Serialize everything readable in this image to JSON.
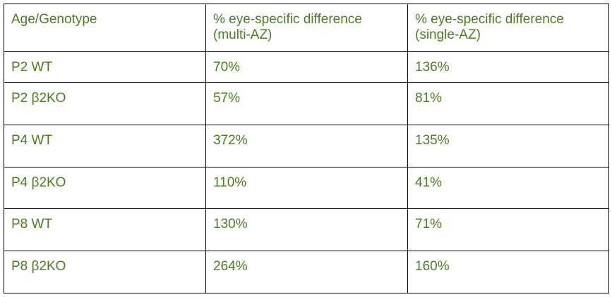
{
  "table": {
    "headers": [
      [
        "Age/Genotype"
      ],
      [
        "% eye-specific difference",
        "(multi-AZ)"
      ],
      [
        "% eye-specific difference",
        "(single-AZ)"
      ]
    ],
    "rows": [
      [
        "P2 WT",
        "70%",
        "136%"
      ],
      [
        "P2 β2KO",
        "57%",
        "81%"
      ],
      [
        "P4 WT",
        "372%",
        "135%"
      ],
      [
        "P4 β2KO",
        "110%",
        "41%"
      ],
      [
        "P8 WT",
        "130%",
        "71%"
      ],
      [
        "P8 β2KO",
        "264%",
        "160%"
      ]
    ]
  },
  "colors": {
    "text": "#4a7d24",
    "border": "#000000"
  }
}
